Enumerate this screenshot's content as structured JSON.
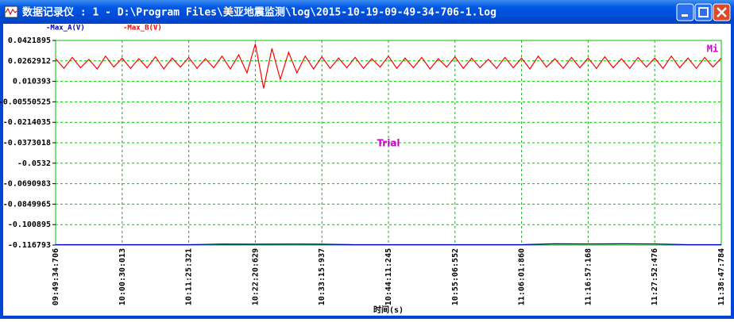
{
  "window": {
    "title": "数据记录仪 : 1 - D:\\Program Files\\美亚地震监测\\log\\2015-10-19-09-49-34-706-1.log"
  },
  "chart_data": {
    "type": "line",
    "xlabel": "时间(s)",
    "annotations": [
      "Trial",
      "Mi"
    ],
    "x_labels": [
      "09:49:34:706",
      "10:00:30:013",
      "10:11:25:321",
      "10:22:20:629",
      "10:33:15:937",
      "10:44:11:245",
      "10:55:06:552",
      "11:06:01:860",
      "11:16:57:168",
      "11:27:52:476",
      "11:38:47:784"
    ],
    "ylim": [
      -0.116793,
      0.0421895
    ],
    "yticks": [
      0.0421895,
      0.0262912,
      0.010393,
      -0.00550525,
      -0.0214035,
      -0.0373018,
      -0.0532,
      -0.0690983,
      -0.0849965,
      -0.100895,
      -0.116793
    ],
    "grid": true,
    "series": [
      {
        "name": "-Max_A(V)",
        "color": "#0000c0",
        "values": [
          -0.1165,
          -0.1165,
          -0.1165,
          -0.1165,
          -0.1165,
          -0.116,
          -0.1161,
          -0.116,
          -0.1161,
          -0.1165,
          -0.1165,
          -0.1165,
          -0.1165,
          -0.1165,
          -0.1165,
          -0.1158,
          -0.1159,
          -0.1158,
          -0.1159,
          -0.1165,
          -0.1165
        ]
      },
      {
        "name": "-Max_B(V)",
        "color": "#ff0000",
        "values": [
          0.028,
          0.0205,
          0.029,
          0.021,
          0.0275,
          0.02,
          0.03,
          0.0215,
          0.0285,
          0.0205,
          0.028,
          0.021,
          0.0295,
          0.02,
          0.0285,
          0.0215,
          0.029,
          0.0205,
          0.028,
          0.021,
          0.03,
          0.02,
          0.031,
          0.017,
          0.0395,
          0.005,
          0.036,
          0.012,
          0.033,
          0.017,
          0.03,
          0.02,
          0.0295,
          0.0205,
          0.0285,
          0.021,
          0.029,
          0.0205,
          0.028,
          0.0215,
          0.03,
          0.0205,
          0.0285,
          0.021,
          0.029,
          0.02,
          0.028,
          0.0215,
          0.0295,
          0.0205,
          0.0285,
          0.021,
          0.0275,
          0.0205,
          0.029,
          0.021,
          0.0285,
          0.02,
          0.03,
          0.0215,
          0.028,
          0.0205,
          0.029,
          0.021,
          0.0285,
          0.0205,
          0.0295,
          0.021,
          0.028,
          0.0205,
          0.029,
          0.0215,
          0.0285,
          0.0205,
          0.03,
          0.021,
          0.0285,
          0.0205,
          0.029,
          0.0215,
          0.0285
        ]
      }
    ]
  }
}
